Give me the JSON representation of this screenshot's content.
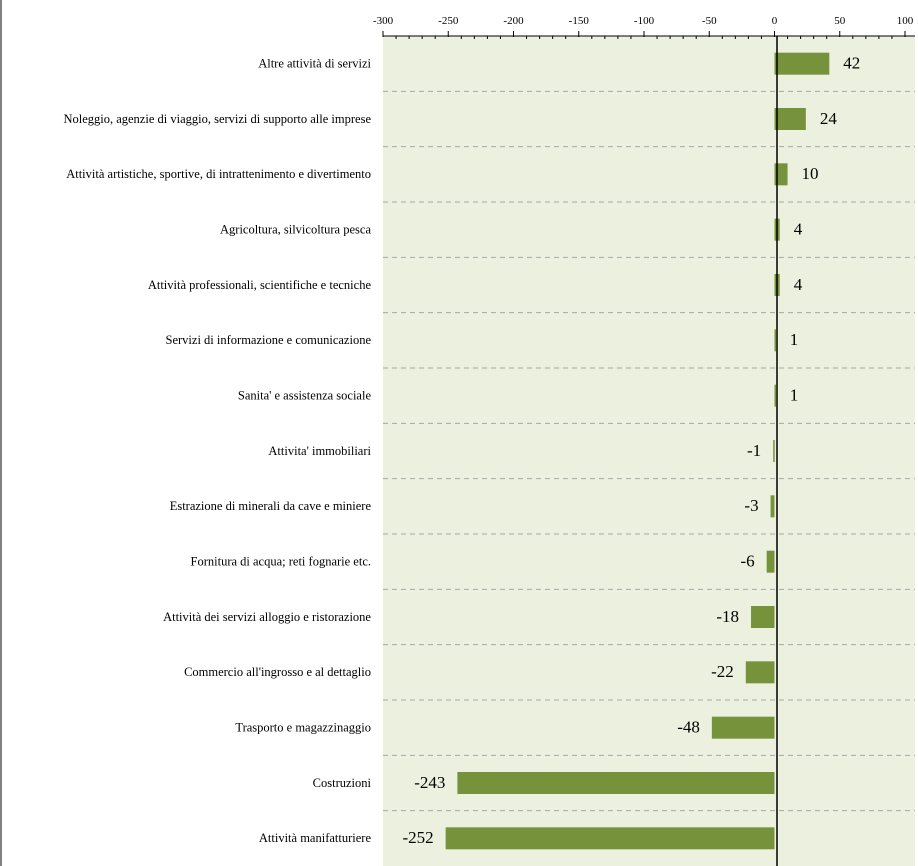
{
  "chart_data": {
    "type": "bar",
    "orientation": "horizontal",
    "title": "",
    "xlabel": "",
    "ylabel": "",
    "xlim": [
      -300,
      100
    ],
    "ticks": [
      -300,
      -250,
      -200,
      -150,
      -100,
      -50,
      0,
      50,
      100
    ],
    "tick_labels": [
      "-300",
      "-250",
      "-200",
      "-150",
      "-100",
      "-50",
      "0",
      "50",
      "100"
    ],
    "grid": "horizontal dashed",
    "categories": [
      "Altre attività di servizi",
      "Noleggio, agenzie di viaggio, servizi di supporto alle imprese",
      "Attività artistiche, sportive, di intrattenimento e divertimento",
      "Agricoltura, silvicoltura pesca",
      "Attività professionali, scientifiche e tecniche",
      "Servizi di informazione e comunicazione",
      "Sanita' e assistenza sociale",
      "Attivita' immobiliari",
      "Estrazione di minerali da cave e miniere",
      "Fornitura di acqua; reti fognarie etc.",
      "Attività dei servizi alloggio e ristorazione",
      "Commercio all'ingrosso e al dettaglio",
      "Trasporto e magazzinaggio",
      "Costruzioni",
      "Attività manifatturiere"
    ],
    "values": [
      42,
      24,
      10,
      4,
      4,
      1,
      1,
      -1,
      -3,
      -6,
      -18,
      -22,
      -48,
      -243,
      -252
    ],
    "value_labels": [
      "42",
      "24",
      "10",
      "4",
      "4",
      "1",
      "1",
      "-1",
      "-3",
      "-6",
      "-18",
      "-22",
      "-48",
      "-243",
      "-252"
    ],
    "colors": {
      "bar": "#76933C",
      "plot_background": "#EBF1DE",
      "grid": "#A6A6A6",
      "axis": "#000000",
      "text": "#000000"
    }
  }
}
